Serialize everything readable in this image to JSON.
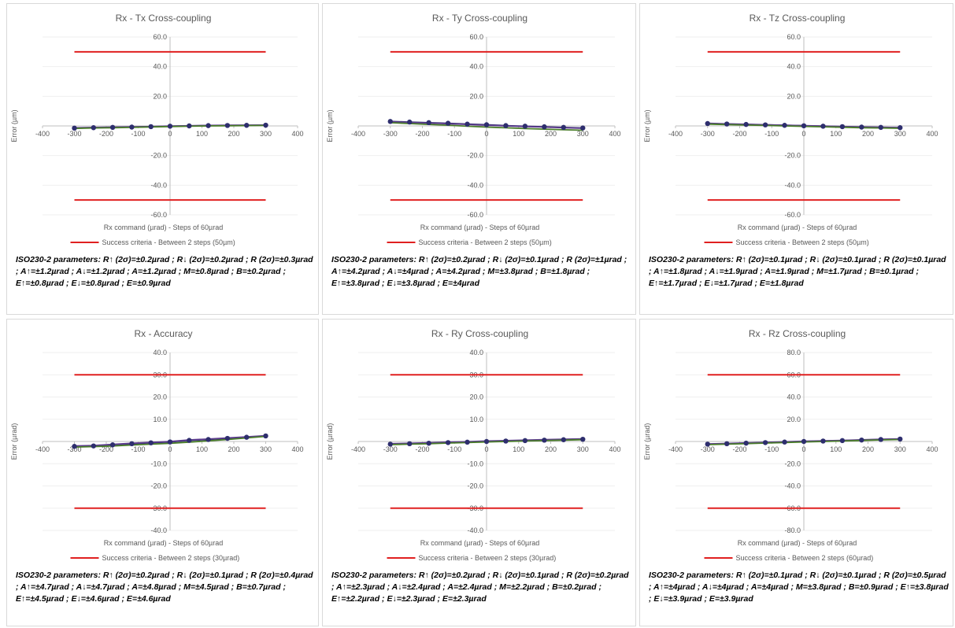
{
  "chart_data": [
    {
      "type": "line",
      "title": "Rx - Tx Cross-coupling",
      "xlabel": "Rx command (µrad) - Steps of 60µrad",
      "ylabel": "Error (µm)",
      "xlim": [
        -400,
        400
      ],
      "ylim": [
        -60,
        60
      ],
      "xticks": [
        "-400",
        "-300",
        "-200",
        "-100",
        "0",
        "100",
        "200",
        "300",
        "400"
      ],
      "yticks": [
        "60.0",
        "40.0",
        "20.0",
        "-20.0",
        "-40.0",
        "-60.0"
      ],
      "x": [
        -300,
        -240,
        -180,
        -120,
        -60,
        0,
        60,
        120,
        180,
        240,
        300
      ],
      "series": [
        {
          "values": [
            -1.5,
            -1.2,
            -1.0,
            -0.8,
            -0.5,
            -0.2,
            0.0,
            0.2,
            0.3,
            0.4,
            0.5
          ],
          "color": "#2e2e6e"
        },
        {
          "values": [
            -1.3,
            -1.0,
            -0.8,
            -0.6,
            -0.4,
            -0.1,
            0.1,
            0.3,
            0.4,
            0.5,
            0.6
          ],
          "color": "#5b3a8c"
        },
        {
          "values": [
            -1.7,
            -1.4,
            -1.2,
            -1.0,
            -0.7,
            -0.4,
            -0.2,
            0.0,
            0.1,
            0.2,
            0.3
          ],
          "color": "#4a7d2a"
        }
      ],
      "criteria": {
        "name": "Success criteria - Between 2 steps (50µm)",
        "y": [
          50,
          -50
        ],
        "x": [
          -300,
          300
        ],
        "color": "#e02020"
      },
      "params": "ISO230-2 parameters: R↑ (2σ)=±0.2µrad ; R↓ (2σ)=±0.2µrad ; R (2σ)=±0.3µrad ; A↑=±1.2µrad ; A↓=±1.2µrad ; A=±1.2µrad ; M=±0.8µrad ; B=±0.2µrad ; E↑=±0.8µrad ; E↓=±0.8µrad ; E=±0.9µrad"
    },
    {
      "type": "line",
      "title": "Rx - Ty Cross-coupling",
      "xlabel": "Rx command (µrad) - Steps of 60µrad",
      "ylabel": "Error (µm)",
      "xlim": [
        -400,
        400
      ],
      "ylim": [
        -60,
        60
      ],
      "xticks": [
        "-400",
        "-300",
        "-200",
        "-100",
        "0",
        "100",
        "200",
        "300",
        "400"
      ],
      "yticks": [
        "60.0",
        "40.0",
        "20.0",
        "-20.0",
        "-40.0",
        "-60.0"
      ],
      "x": [
        -300,
        -240,
        -180,
        -120,
        -60,
        0,
        60,
        120,
        180,
        240,
        300
      ],
      "series": [
        {
          "values": [
            3.0,
            2.6,
            2.2,
            1.8,
            1.2,
            0.8,
            0.2,
            -0.2,
            -0.6,
            -1.0,
            -1.4
          ],
          "color": "#2e2e6e"
        },
        {
          "values": [
            2.8,
            2.3,
            1.9,
            1.5,
            1.0,
            0.5,
            0.0,
            -0.4,
            -0.8,
            -1.2,
            -1.6
          ],
          "color": "#5b3a8c"
        },
        {
          "values": [
            2.2,
            1.6,
            1.0,
            0.5,
            -0.2,
            -0.8,
            -1.3,
            -1.8,
            -2.2,
            -2.6,
            -2.9
          ],
          "color": "#4a7d2a"
        }
      ],
      "criteria": {
        "name": "Success criteria - Between 2 steps (50µm)",
        "y": [
          50,
          -50
        ],
        "x": [
          -300,
          300
        ],
        "color": "#e02020"
      },
      "params": "ISO230-2 parameters: R↑ (2σ)=±0.2µrad ; R↓ (2σ)=±0.1µrad ; R (2σ)=±1µrad ; A↑=±4.2µrad ; A↓=±4µrad ; A=±4.2µrad ; M=±3.8µrad ; B=±1.8µrad ; E↑=±3.8µrad ; E↓=±3.8µrad ; E=±4µrad"
    },
    {
      "type": "line",
      "title": "Rx - Tz Cross-coupling",
      "xlabel": "Rx command (µrad) - Steps of 60µrad",
      "ylabel": "Error (µm)",
      "xlim": [
        -400,
        400
      ],
      "ylim": [
        -60,
        60
      ],
      "xticks": [
        "-400",
        "-300",
        "-200",
        "-100",
        "0",
        "100",
        "200",
        "300",
        "400"
      ],
      "yticks": [
        "60.0",
        "40.0",
        "20.0",
        "-20.0",
        "-40.0",
        "-60.0"
      ],
      "x": [
        -300,
        -240,
        -180,
        -120,
        -60,
        0,
        60,
        120,
        180,
        240,
        300
      ],
      "series": [
        {
          "values": [
            1.6,
            1.3,
            1.0,
            0.7,
            0.4,
            0.1,
            -0.2,
            -0.5,
            -0.8,
            -1.0,
            -1.2
          ],
          "color": "#2e2e6e"
        },
        {
          "values": [
            1.8,
            1.4,
            1.1,
            0.8,
            0.5,
            0.2,
            -0.1,
            -0.4,
            -0.7,
            -0.9,
            -1.1
          ],
          "color": "#5b3a8c"
        },
        {
          "values": [
            1.2,
            0.9,
            0.6,
            0.3,
            0.0,
            -0.3,
            -0.6,
            -0.9,
            -1.2,
            -1.4,
            -1.6
          ],
          "color": "#4a7d2a"
        }
      ],
      "criteria": {
        "name": "Success criteria - Between 2 steps (50µm)",
        "y": [
          50,
          -50
        ],
        "x": [
          -300,
          300
        ],
        "color": "#e02020"
      },
      "params": "ISO230-2 parameters: R↑ (2σ)=±0.1µrad ; R↓ (2σ)=±0.1µrad ; R (2σ)=±0.1µrad ; A↑=±1.8µrad ; A↓=±1.9µrad ; A=±1.9µrad ; M=±1.7µrad ; B=±0.1µrad ; E↑=±1.7µrad ; E↓=±1.7µrad ; E=±1.8µrad"
    },
    {
      "type": "line",
      "title": "Rx - Accuracy",
      "xlabel": "Rx command (µrad) - Steps of 60µrad",
      "ylabel": "Error (µrad)",
      "xlim": [
        -400,
        400
      ],
      "ylim": [
        -40,
        40
      ],
      "xticks": [
        "-400",
        "-300",
        "-200",
        "-100",
        "0",
        "100",
        "200",
        "300",
        "400"
      ],
      "yticks": [
        "40.0",
        "30.0",
        "20.0",
        "10.0",
        "-10.0",
        "-20.0",
        "-30.0",
        "-40.0"
      ],
      "x": [
        -300,
        -240,
        -180,
        -120,
        -60,
        0,
        60,
        120,
        180,
        240,
        300
      ],
      "series": [
        {
          "values": [
            -2.2,
            -2.0,
            -1.5,
            -1.0,
            -0.6,
            -0.2,
            0.5,
            0.9,
            1.4,
            1.9,
            2.5
          ],
          "color": "#2e2e6e"
        },
        {
          "values": [
            -2.0,
            -1.8,
            -1.3,
            -0.8,
            -0.4,
            0.0,
            0.7,
            1.1,
            1.6,
            2.1,
            2.6
          ],
          "color": "#5b3a8c"
        },
        {
          "values": [
            -2.5,
            -2.3,
            -2.0,
            -1.6,
            -1.2,
            -0.8,
            -0.3,
            0.3,
            0.9,
            1.6,
            2.3
          ],
          "color": "#4a7d2a"
        }
      ],
      "criteria": {
        "name": "Success criteria - Between 2 steps (30µrad)",
        "y": [
          30,
          -30
        ],
        "x": [
          -300,
          300
        ],
        "color": "#e02020"
      },
      "params": "ISO230-2 parameters: R↑ (2σ)=±0.2µrad ; R↓ (2σ)=±0.1µrad ; R (2σ)=±0.4µrad ; A↑=±4.7µrad ; A↓=±4.7µrad ; A=±4.8µrad ; M=±4.5µrad ; B=±0.7µrad ; E↑=±4.5µrad ; E↓=±4.6µrad ; E=±4.6µrad"
    },
    {
      "type": "line",
      "title": "Rx - Ry Cross-coupling",
      "xlabel": "Rx command (µrad) - Steps of 60µrad",
      "ylabel": "Error (µrad)",
      "xlim": [
        -400,
        400
      ],
      "ylim": [
        -40,
        40
      ],
      "xticks": [
        "-400",
        "-300",
        "-200",
        "-100",
        "0",
        "100",
        "200",
        "300",
        "400"
      ],
      "yticks": [
        "40.0",
        "30.0",
        "20.0",
        "10.0",
        "-10.0",
        "-20.0",
        "-30.0",
        "-40.0"
      ],
      "x": [
        -300,
        -240,
        -180,
        -120,
        -60,
        0,
        60,
        120,
        180,
        240,
        300
      ],
      "series": [
        {
          "values": [
            -1.2,
            -1.0,
            -0.8,
            -0.5,
            -0.3,
            0.0,
            0.2,
            0.4,
            0.6,
            0.8,
            1.0
          ],
          "color": "#2e2e6e"
        },
        {
          "values": [
            -1.0,
            -0.8,
            -0.6,
            -0.3,
            -0.1,
            0.2,
            0.4,
            0.6,
            0.8,
            1.0,
            1.2
          ],
          "color": "#5b3a8c"
        },
        {
          "values": [
            -1.4,
            -1.2,
            -1.0,
            -0.7,
            -0.5,
            -0.2,
            0.0,
            0.2,
            0.4,
            0.6,
            0.8
          ],
          "color": "#4a7d2a"
        }
      ],
      "criteria": {
        "name": "Success criteria - Between 2 steps (30µrad)",
        "y": [
          30,
          -30
        ],
        "x": [
          -300,
          300
        ],
        "color": "#e02020"
      },
      "params": "ISO230-2 parameters: R↑ (2σ)=±0.2µrad ; R↓ (2σ)=±0.1µrad ; R (2σ)=±0.2µrad ; A↑=±2.3µrad ; A↓=±2.4µrad ; A=±2.4µrad ; M=±2.2µrad ; B=±0.2µrad ; E↑=±2.2µrad ; E↓=±2.3µrad ; E=±2.3µrad"
    },
    {
      "type": "line",
      "title": "Rx - Rz Cross-coupling",
      "xlabel": "Rx command (µrad) - Steps of 60µrad",
      "ylabel": "Error (µrad)",
      "xlim": [
        -400,
        400
      ],
      "ylim": [
        -80,
        80
      ],
      "xticks": [
        "-400",
        "-300",
        "-200",
        "-100",
        "0",
        "100",
        "200",
        "300",
        "400"
      ],
      "yticks": [
        "80.0",
        "60.0",
        "40.0",
        "20.0",
        "-20.0",
        "-40.0",
        "-60.0",
        "-80.0"
      ],
      "x": [
        -300,
        -240,
        -180,
        -120,
        -60,
        0,
        60,
        120,
        180,
        240,
        300
      ],
      "series": [
        {
          "values": [
            -2.4,
            -2.0,
            -1.5,
            -1.0,
            -0.5,
            0.0,
            0.4,
            0.8,
            1.3,
            1.8,
            2.2
          ],
          "color": "#2e2e6e"
        },
        {
          "values": [
            -2.2,
            -1.8,
            -1.3,
            -0.8,
            -0.3,
            0.2,
            0.6,
            1.0,
            1.5,
            2.0,
            2.4
          ],
          "color": "#5b3a8c"
        },
        {
          "values": [
            -2.8,
            -2.4,
            -1.9,
            -1.4,
            -0.9,
            -0.4,
            0.0,
            0.4,
            0.9,
            1.4,
            1.8
          ],
          "color": "#4a7d2a"
        }
      ],
      "criteria": {
        "name": "Success criteria - Between 2 steps (60µrad)",
        "y": [
          60,
          -60
        ],
        "x": [
          -300,
          300
        ],
        "color": "#e02020"
      },
      "params": "ISO230-2 parameters: R↑ (2σ)=±0.1µrad ; R↓ (2σ)=±0.1µrad ; R (2σ)=±0.5µrad ; A↑=±4µrad ; A↓=±4µrad ; A=±4µrad ; M=±3.8µrad ; B=±0.9µrad ; E↑=±3.8µrad ; E↓=±3.9µrad ; E=±3.9µrad"
    }
  ]
}
